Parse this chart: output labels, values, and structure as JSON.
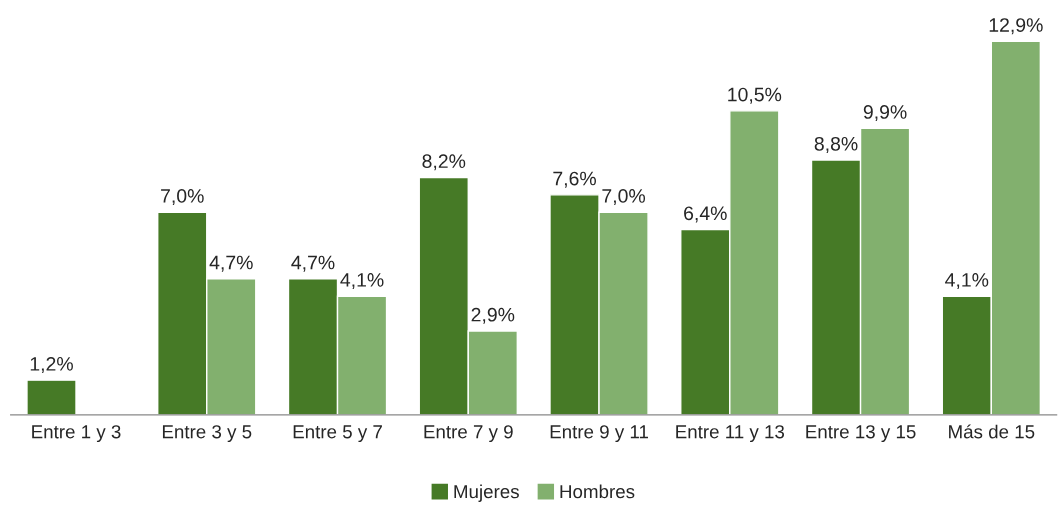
{
  "chart_data": {
    "type": "bar",
    "categories": [
      "Entre 1 y 3",
      "Entre 3 y 5",
      "Entre 5 y 7",
      "Entre 7 y 9",
      "Entre 9 y 11",
      "Entre 11 y 13",
      "Entre 13 y 15",
      "Más de 15"
    ],
    "series": [
      {
        "name": "Mujeres",
        "color": "#467a26",
        "values": [
          1.2,
          7.0,
          4.7,
          8.2,
          7.6,
          6.4,
          8.8,
          4.1
        ],
        "value_labels": [
          "1,2%",
          "7,0%",
          "4,7%",
          "8,2%",
          "7,6%",
          "6,4%",
          "8,8%",
          "4,1%"
        ]
      },
      {
        "name": "Hombres",
        "color": "#82b06e",
        "values": [
          null,
          4.7,
          4.1,
          2.9,
          7.0,
          10.5,
          9.9,
          12.9
        ],
        "value_labels": [
          null,
          "4,7%",
          "4,1%",
          "2,9%",
          "7,0%",
          "10,5%",
          "9,9%",
          "12,9%"
        ]
      }
    ],
    "legend": "bottom",
    "grid": false
  }
}
